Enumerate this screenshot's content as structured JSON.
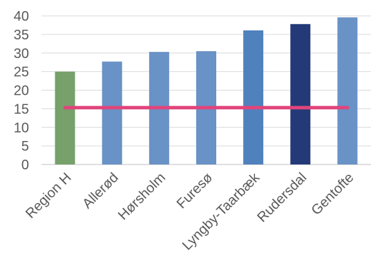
{
  "chart_data": {
    "type": "bar",
    "categories": [
      "Region H",
      "Allerød",
      "Hørsholm",
      "Furesø",
      "Lyngby-Taarbæk",
      "Rudersdal",
      "Gentofte"
    ],
    "values": [
      25.0,
      27.7,
      30.3,
      30.5,
      36.1,
      37.8,
      39.6
    ],
    "bar_colors": [
      "#77a06a",
      "#6992c6",
      "#6992c6",
      "#6992c6",
      "#4f81bd",
      "#243a78",
      "#6992c6"
    ],
    "reference_line": {
      "value": 15.3,
      "color": "#e0457b"
    },
    "ylim": [
      0,
      40
    ],
    "yticks": [
      0,
      5,
      10,
      15,
      20,
      25,
      30,
      35,
      40
    ],
    "grid": true,
    "title": "",
    "xlabel": "",
    "ylabel": ""
  }
}
